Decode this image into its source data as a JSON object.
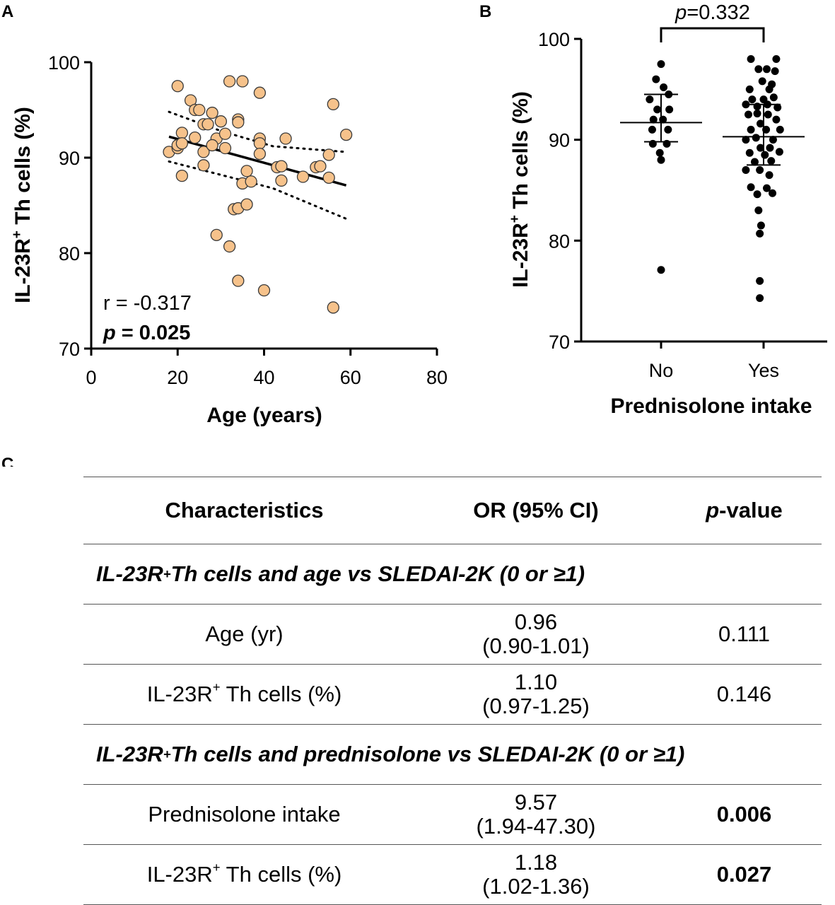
{
  "chart_data": [
    {
      "panel": "A",
      "type": "scatter",
      "xlabel": "Age (years)",
      "ylabel_main": "IL-23R",
      "ylabel_sup": "+",
      "ylabel_rest": " Th cells (%)",
      "xlim": [
        0,
        80
      ],
      "ylim": [
        70,
        100
      ],
      "xticks": [
        0,
        20,
        40,
        60,
        80
      ],
      "yticks": [
        70,
        80,
        90,
        100
      ],
      "fit": {
        "x": [
          18,
          59
        ],
        "y": [
          92.2,
          87.1
        ]
      },
      "ci_upper": [
        [
          18,
          94.8
        ],
        [
          30,
          92.8
        ],
        [
          42,
          91.2
        ],
        [
          59,
          90.6
        ]
      ],
      "ci_lower": [
        [
          18,
          89.6
        ],
        [
          30,
          88.2
        ],
        [
          42,
          86.8
        ],
        [
          59,
          83.6
        ]
      ],
      "annotation_r": "r = -0.317",
      "annotation_p_label": "p",
      "annotation_p_value": " = 0.025",
      "points": [
        [
          20,
          97.5
        ],
        [
          23,
          96.0
        ],
        [
          24,
          95.0
        ],
        [
          25,
          95.0
        ],
        [
          26,
          93.5
        ],
        [
          27,
          93.5
        ],
        [
          28,
          94.7
        ],
        [
          29,
          92.0
        ],
        [
          30,
          93.8
        ],
        [
          31,
          92.5
        ],
        [
          32,
          98.0
        ],
        [
          35,
          98.0
        ],
        [
          34,
          94.0
        ],
        [
          34,
          93.7
        ],
        [
          39,
          96.8
        ],
        [
          39,
          92.0
        ],
        [
          39,
          91.5
        ],
        [
          45,
          92.0
        ],
        [
          56,
          95.6
        ],
        [
          59,
          92.4
        ],
        [
          18,
          90.6
        ],
        [
          20,
          91.0
        ],
        [
          20,
          91.3
        ],
        [
          21,
          92.6
        ],
        [
          21,
          91.5
        ],
        [
          21,
          88.1
        ],
        [
          24,
          92.1
        ],
        [
          26,
          90.6
        ],
        [
          26,
          89.2
        ],
        [
          28,
          91.3
        ],
        [
          31,
          91.0
        ],
        [
          36,
          88.6
        ],
        [
          35,
          87.3
        ],
        [
          37,
          87.5
        ],
        [
          39,
          90.4
        ],
        [
          43,
          89.0
        ],
        [
          44,
          89.1
        ],
        [
          44,
          87.6
        ],
        [
          49,
          88.0
        ],
        [
          52,
          89.0
        ],
        [
          53,
          89.1
        ],
        [
          55,
          90.3
        ],
        [
          55,
          87.9
        ],
        [
          33,
          84.6
        ],
        [
          34,
          84.7
        ],
        [
          36,
          85.1
        ],
        [
          29,
          81.9
        ],
        [
          32,
          80.7
        ],
        [
          34,
          77.1
        ],
        [
          40,
          76.1
        ],
        [
          56,
          74.3
        ]
      ]
    },
    {
      "panel": "B",
      "type": "dot-plot",
      "xlabel": "Prednisolone intake",
      "ylabel_main": "IL-23R",
      "ylabel_sup": "+",
      "ylabel_rest": " Th cells (%)",
      "ylim": [
        70,
        100
      ],
      "yticks": [
        70,
        80,
        90,
        100
      ],
      "categories": [
        "No",
        "Yes"
      ],
      "p_label": "p",
      "p_value": "=0.332",
      "groups": [
        {
          "name": "No",
          "mean": 91.7,
          "sd_low": 89.8,
          "sd_high": 94.5,
          "points": [
            [
              0,
              97.5
            ],
            [
              -0.08,
              96.0
            ],
            [
              0.04,
              95.2
            ],
            [
              0.12,
              94.5
            ],
            [
              -0.18,
              94.0
            ],
            [
              -0.06,
              93.0
            ],
            [
              0.13,
              93.0
            ],
            [
              -0.12,
              92.0
            ],
            [
              0.03,
              92.0
            ],
            [
              -0.14,
              91.0
            ],
            [
              0.11,
              91.0
            ],
            [
              -0.13,
              89.6
            ],
            [
              0.09,
              89.6
            ],
            [
              -0.02,
              88.7
            ],
            [
              0,
              88.0
            ],
            [
              0,
              77.1
            ]
          ]
        },
        {
          "name": "Yes",
          "mean": 90.3,
          "sd_low": 87.5,
          "sd_high": 93.5,
          "points": [
            [
              -0.2,
              98.0
            ],
            [
              0.2,
              98.0
            ],
            [
              -0.08,
              97.0
            ],
            [
              0.05,
              97.0
            ],
            [
              0.18,
              96.8
            ],
            [
              -0.02,
              95.8
            ],
            [
              0.13,
              95.5
            ],
            [
              -0.22,
              95.0
            ],
            [
              0.09,
              95.0
            ],
            [
              -0.18,
              94.0
            ],
            [
              0,
              94.0
            ],
            [
              0.16,
              94.2
            ],
            [
              -0.28,
              93.5
            ],
            [
              -0.1,
              93.3
            ],
            [
              0.06,
              93.5
            ],
            [
              0.22,
              93.2
            ],
            [
              -0.24,
              92.5
            ],
            [
              -0.1,
              92.6
            ],
            [
              0.07,
              92.5
            ],
            [
              0.2,
              92.0
            ],
            [
              -0.05,
              91.6
            ],
            [
              -0.2,
              91.0
            ],
            [
              0.04,
              91.0
            ],
            [
              0.26,
              91.0
            ],
            [
              -0.28,
              90.0
            ],
            [
              -0.12,
              90.2
            ],
            [
              0.15,
              90.0
            ],
            [
              -0.05,
              89.2
            ],
            [
              0.1,
              89.2
            ],
            [
              -0.22,
              88.7
            ],
            [
              0.02,
              88.5
            ],
            [
              0.25,
              88.8
            ],
            [
              -0.14,
              87.8
            ],
            [
              0.12,
              87.9
            ],
            [
              -0.28,
              87.0
            ],
            [
              -0.06,
              87.0
            ],
            [
              0.09,
              86.5
            ],
            [
              -0.2,
              85.3
            ],
            [
              0.05,
              85.2
            ],
            [
              -0.1,
              84.6
            ],
            [
              0.14,
              84.7
            ],
            [
              -0.08,
              83.0
            ],
            [
              -0.04,
              81.5
            ],
            [
              -0.06,
              80.7
            ],
            [
              -0.06,
              76.0
            ],
            [
              -0.06,
              74.3
            ]
          ]
        }
      ]
    },
    {
      "panel": "C",
      "type": "table",
      "headers": [
        "Characteristics",
        "OR (95% CI)",
        "-value"
      ],
      "header_p": "p",
      "sections": [
        {
          "title_main": "IL-23R",
          "title_sup": "+",
          "title_rest": " Th cells and age vs SLEDAI-2K (0 or ≥1)",
          "rows": [
            {
              "label": "Age (yr)",
              "or": "0.96",
              "ci": "(0.90-1.01)",
              "p": "0.111",
              "bold": false
            },
            {
              "label_main": "IL-23R",
              "label_sup": "+",
              "label_rest": " Th cells (%)",
              "or": "1.10",
              "ci": "(0.97-1.25)",
              "p": "0.146",
              "bold": false
            }
          ]
        },
        {
          "title_main": "IL-23R",
          "title_sup": "+",
          "title_rest": " Th cells and prednisolone vs SLEDAI-2K (0 or ≥1)",
          "rows": [
            {
              "label": "Prednisolone intake",
              "or": "9.57",
              "ci": "(1.94-47.30)",
              "p": "0.006",
              "bold": true
            },
            {
              "label_main": "IL-23R",
              "label_sup": "+",
              "label_rest": " Th cells (%)",
              "or": "1.18",
              "ci": "(1.02-1.36)",
              "p": "0.027",
              "bold": true
            }
          ]
        }
      ]
    }
  ],
  "panel_letters": {
    "a": "A",
    "b": "B",
    "c": "C"
  },
  "colors": {
    "point_fill_a": "#f6c28b",
    "point_edge_a": "#3a3a3a",
    "ink": "#000000"
  }
}
